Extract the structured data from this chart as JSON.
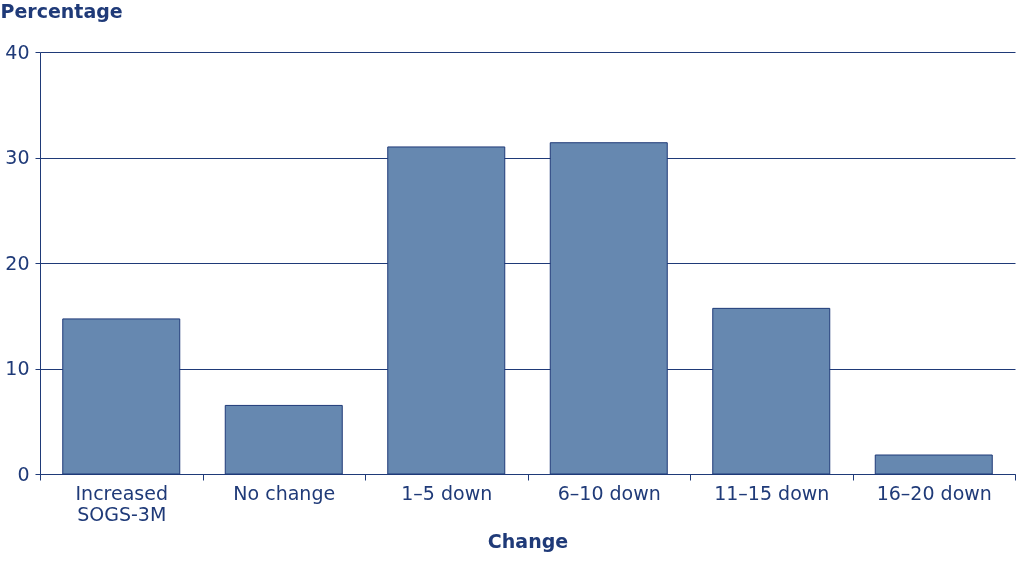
{
  "chart_data": {
    "type": "bar",
    "xlabel": "Change",
    "ylabel": "Percentage",
    "categories": [
      "Increased\nSOGS-3M",
      "No change",
      "1–5 down",
      "6–10 down",
      "11–15 down",
      "16–20 down"
    ],
    "values": [
      14.7,
      6.5,
      31.0,
      31.4,
      15.7,
      1.8
    ],
    "color": "#6688b0",
    "ylim": [
      0,
      40
    ],
    "yticks": [
      0,
      10,
      20,
      30,
      40
    ],
    "grid": "y"
  }
}
